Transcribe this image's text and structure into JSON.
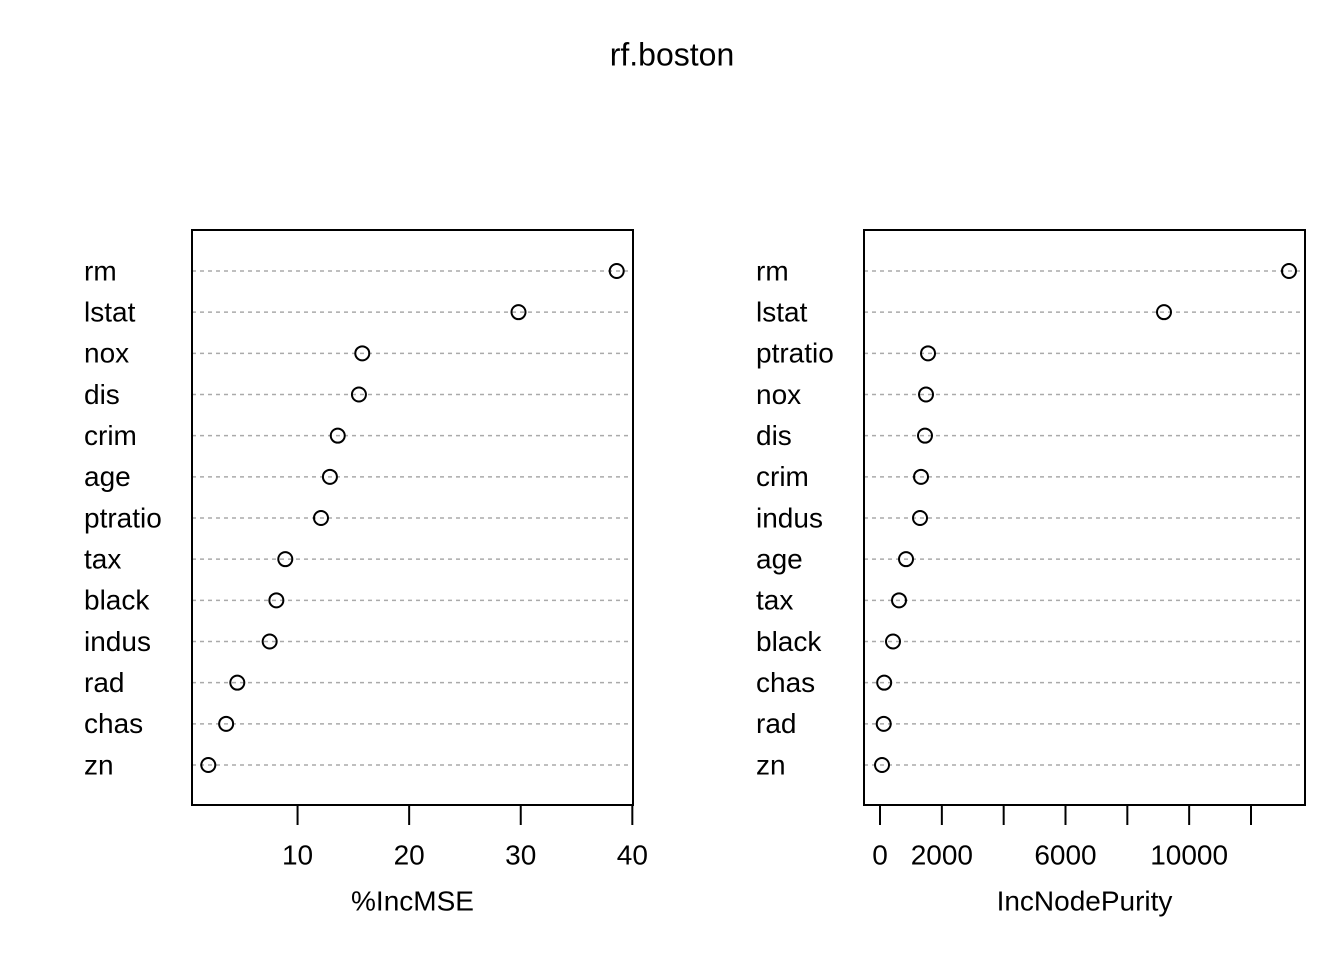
{
  "title": "rf.boston",
  "chart_data": [
    {
      "type": "dot",
      "xlabel": "%IncMSE",
      "categories": [
        "rm",
        "lstat",
        "nox",
        "dis",
        "crim",
        "age",
        "ptratio",
        "tax",
        "black",
        "indus",
        "rad",
        "chas",
        "zn"
      ],
      "values": [
        38.6,
        29.8,
        15.8,
        15.5,
        13.6,
        12.9,
        12.1,
        8.9,
        8.1,
        7.5,
        4.6,
        3.6,
        2.0
      ],
      "xlim": [
        0.54,
        40.06
      ],
      "xticks": [
        10,
        20,
        30,
        40
      ],
      "grid": true,
      "color": "#000000"
    },
    {
      "type": "dot",
      "xlabel": "IncNodePurity",
      "categories": [
        "rm",
        "lstat",
        "ptratio",
        "nox",
        "dis",
        "crim",
        "indus",
        "age",
        "tax",
        "black",
        "chas",
        "rad",
        "zn"
      ],
      "values": [
        13229,
        9186,
        1553,
        1488,
        1455,
        1326,
        1294,
        841,
        615,
        420,
        135,
        120,
        65
      ],
      "xlim": [
        -518,
        13747
      ],
      "xticks": [
        0,
        2000,
        4000,
        6000,
        8000,
        10000,
        12000
      ],
      "grid": true,
      "color": "#000000"
    }
  ]
}
